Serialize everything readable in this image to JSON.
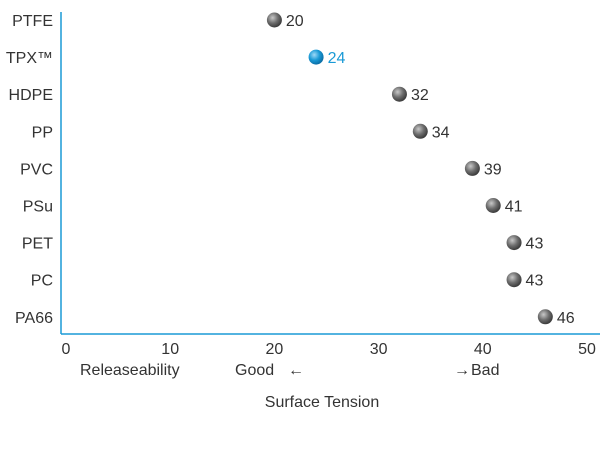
{
  "chart_data": {
    "type": "scatter",
    "categories": [
      "PTFE",
      "TPX™",
      "HDPE",
      "PP",
      "PVC",
      "PSu",
      "PET",
      "PC",
      "PA66"
    ],
    "values": [
      20,
      24,
      32,
      34,
      39,
      41,
      43,
      43,
      46
    ],
    "highlight_index": 1,
    "xlabel": "Surface Tension",
    "xlim": [
      0,
      50
    ],
    "xticks": [
      0,
      10,
      20,
      30,
      40,
      50
    ],
    "grid": false,
    "annotations": {
      "releaseability": "Releaseability",
      "good": "Good",
      "good_arrow": "←",
      "bad_arrow": "→",
      "bad": "Bad"
    },
    "colors": {
      "axis": "#1a9ad6",
      "highlight": "#1a9ad6",
      "marker": "#5a5a5a",
      "text": "#333333"
    }
  }
}
